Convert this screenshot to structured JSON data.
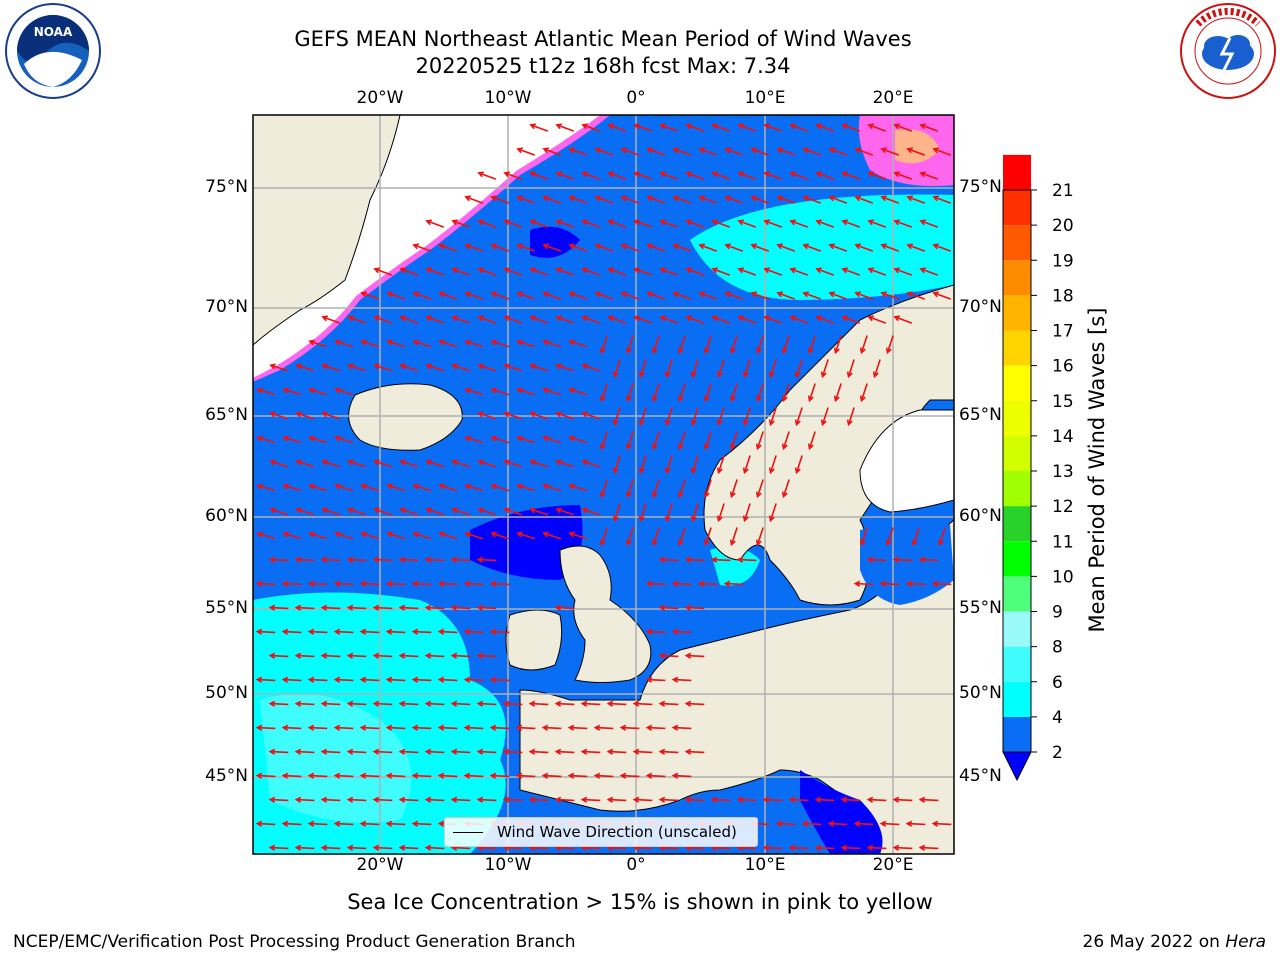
{
  "header": {
    "title_line1": "GEFS MEAN Northeast Atlantic Mean Period of Wind Waves",
    "title_line2": "20220525 t12z 168h fcst   Max: 7.34"
  },
  "map": {
    "lon_ticks": [
      "20°W",
      "10°W",
      "0°",
      "10°E",
      "20°E"
    ],
    "lat_ticks": [
      "75°N",
      "70°N",
      "65°N",
      "60°N",
      "55°N",
      "50°N",
      "45°N"
    ],
    "land_color": "#efecdc",
    "ice_free_color": "#ffffff"
  },
  "legend": {
    "label": "Wind Wave Direction (unscaled)"
  },
  "colorbar": {
    "label": "Mean Period of Wind Waves [s]",
    "ticks": [
      "2",
      "4",
      "6",
      "8",
      "9",
      "10",
      "11",
      "12",
      "13",
      "14",
      "15",
      "16",
      "17",
      "18",
      "19",
      "20",
      "21"
    ],
    "colors": [
      "#0a6ef5",
      "#00ffff",
      "#40fdfd",
      "#9afafa",
      "#4dff7a",
      "#00ff00",
      "#28d228",
      "#a0ff00",
      "#d2ff00",
      "#eeff00",
      "#ffff00",
      "#ffd400",
      "#ffb400",
      "#ff8c00",
      "#ff5a00",
      "#ff3000",
      "#ff0000"
    ],
    "extend_color": "#0000ff"
  },
  "caption": "Sea Ice Concentration > 15% is shown in pink to yellow",
  "footer": {
    "credit": "NCEP/EMC/Verification Post Processing Product Generation Branch",
    "date": "26 May 2022 on ",
    "machine": "Hera"
  }
}
